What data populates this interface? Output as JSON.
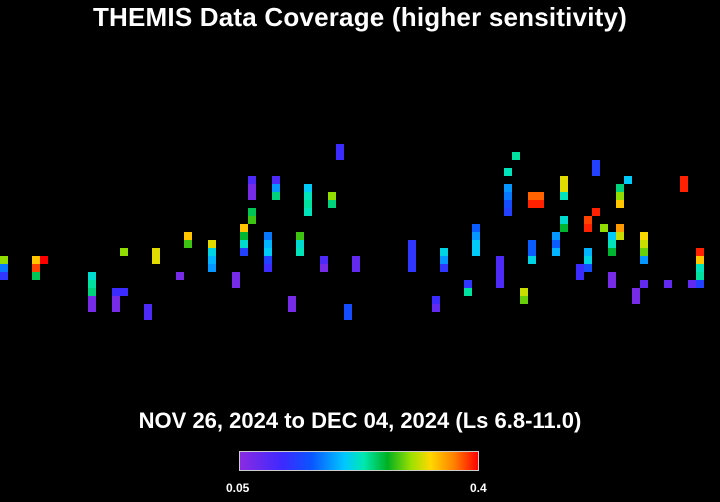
{
  "title": "THEMIS Data Coverage (higher sensitivity)",
  "subtitle": "NOV 26, 2024 to DEC 04, 2024 (Ls 6.8-11.0)",
  "colorbar": {
    "min_label": "0.05",
    "max_label": "0.4",
    "min": 0.05,
    "max": 0.4
  },
  "chart_data": {
    "type": "heatmap",
    "title": "THEMIS Data Coverage (higher sensitivity)",
    "subtitle": "NOV 26, 2024 to DEC 04, 2024 (Ls 6.8-11.0)",
    "value_range": [
      0.05,
      0.4
    ],
    "colorscale": [
      "#8a2be2",
      "#3c2aff",
      "#0a55ff",
      "#00c8ff",
      "#00e8b0",
      "#00b020",
      "#9ee000",
      "#ffd800",
      "#ff8000",
      "#ff0000"
    ],
    "strips": [
      {
        "col": 0,
        "start_row": 32,
        "values": [
          0.28,
          0.14,
          0.1
        ]
      },
      {
        "col": 4,
        "start_row": 32,
        "values": [
          0.33,
          0.38,
          0.23
        ]
      },
      {
        "col": 5,
        "start_row": 32,
        "values": [
          0.4
        ]
      },
      {
        "col": 11,
        "start_row": 34,
        "values": [
          0.19,
          0.21,
          0.22,
          0.06,
          0.06
        ]
      },
      {
        "col": 14,
        "start_row": 36,
        "values": [
          0.09,
          0.06,
          0.06
        ]
      },
      {
        "col": 15,
        "start_row": 36,
        "values": [
          0.09
        ]
      },
      {
        "col": 15,
        "start_row": 31,
        "values": [
          0.28
        ]
      },
      {
        "col": 18,
        "start_row": 38,
        "values": [
          0.08,
          0.08
        ]
      },
      {
        "col": 19,
        "start_row": 31,
        "values": [
          0.31,
          0.31
        ]
      },
      {
        "col": 22,
        "start_row": 34,
        "values": [
          0.06
        ]
      },
      {
        "col": 23,
        "start_row": 29,
        "values": [
          0.33,
          0.26
        ]
      },
      {
        "col": 26,
        "start_row": 30,
        "values": [
          0.31,
          0.18,
          0.16,
          0.15
        ]
      },
      {
        "col": 29,
        "start_row": 34,
        "values": [
          0.06,
          0.06
        ]
      },
      {
        "col": 30,
        "start_row": 28,
        "values": [
          0.33,
          0.24,
          0.19,
          0.11
        ]
      },
      {
        "col": 31,
        "start_row": 22,
        "values": [
          0.08,
          0.06,
          0.06
        ]
      },
      {
        "col": 31,
        "start_row": 26,
        "values": [
          0.23,
          0.26
        ]
      },
      {
        "col": 33,
        "start_row": 29,
        "values": [
          0.14,
          0.16,
          0.17,
          0.11,
          0.09
        ]
      },
      {
        "col": 34,
        "start_row": 22,
        "values": [
          0.08,
          0.15,
          0.22
        ]
      },
      {
        "col": 36,
        "start_row": 37,
        "values": [
          0.06,
          0.06
        ]
      },
      {
        "col": 37,
        "start_row": 29,
        "values": [
          0.26,
          0.19,
          0.2
        ]
      },
      {
        "col": 38,
        "start_row": 23,
        "values": [
          0.17,
          0.2,
          0.21,
          0.2
        ]
      },
      {
        "col": 40,
        "start_row": 32,
        "values": [
          0.08,
          0.06
        ]
      },
      {
        "col": 41,
        "start_row": 24,
        "values": [
          0.28,
          0.22
        ]
      },
      {
        "col": 42,
        "start_row": 18,
        "values": [
          0.09,
          0.09
        ]
      },
      {
        "col": 43,
        "start_row": 38,
        "values": [
          0.12,
          0.12
        ]
      },
      {
        "col": 44,
        "start_row": 32,
        "values": [
          0.07,
          0.07
        ]
      },
      {
        "col": 51,
        "start_row": 30,
        "values": [
          0.1,
          0.1,
          0.1,
          0.1
        ]
      },
      {
        "col": 54,
        "start_row": 37,
        "values": [
          0.09,
          0.07
        ]
      },
      {
        "col": 55,
        "start_row": 31,
        "values": [
          0.09,
          0.09,
          0.1
        ]
      },
      {
        "col": 55,
        "start_row": 33,
        "values": [
          0.09
        ]
      },
      {
        "col": 55,
        "start_row": 31,
        "values": [
          0.18,
          0.15,
          0.1
        ]
      },
      {
        "col": 58,
        "start_row": 35,
        "values": [
          0.1,
          0.21
        ]
      },
      {
        "col": 59,
        "start_row": 28,
        "values": [
          0.13,
          0.15,
          0.17,
          0.17
        ]
      },
      {
        "col": 62,
        "start_row": 32,
        "values": [
          0.08,
          0.08,
          0.08,
          0.08
        ]
      },
      {
        "col": 63,
        "start_row": 23,
        "values": [
          0.15,
          0.14,
          0.12,
          0.11
        ]
      },
      {
        "col": 63,
        "start_row": 21,
        "values": [
          0.2
        ]
      },
      {
        "col": 64,
        "start_row": 19,
        "values": [
          0.21
        ]
      },
      {
        "col": 65,
        "start_row": 36,
        "values": [
          0.3,
          0.27
        ]
      },
      {
        "col": 66,
        "start_row": 30,
        "values": [
          0.13,
          0.13,
          0.18
        ]
      },
      {
        "col": 66,
        "start_row": 24,
        "values": [
          0.37,
          0.39
        ]
      },
      {
        "col": 67,
        "start_row": 24,
        "values": [
          0.37,
          0.39
        ]
      },
      {
        "col": 69,
        "start_row": 29,
        "values": [
          0.15,
          0.13,
          0.16
        ]
      },
      {
        "col": 70,
        "start_row": 22,
        "values": [
          0.31,
          0.31,
          0.2
        ]
      },
      {
        "col": 70,
        "start_row": 27,
        "values": [
          0.19,
          0.24
        ]
      },
      {
        "col": 72,
        "start_row": 33,
        "values": [
          0.09,
          0.09
        ]
      },
      {
        "col": 73,
        "start_row": 31,
        "values": [
          0.16,
          0.18,
          0.12
        ]
      },
      {
        "col": 73,
        "start_row": 27,
        "values": [
          0.38,
          0.39
        ]
      },
      {
        "col": 74,
        "start_row": 26,
        "values": [
          0.39
        ]
      },
      {
        "col": 74,
        "start_row": 20,
        "values": [
          0.11,
          0.11
        ]
      },
      {
        "col": 75,
        "start_row": 28,
        "values": [
          0.28
        ]
      },
      {
        "col": 76,
        "start_row": 29,
        "values": [
          0.17,
          0.2,
          0.24
        ]
      },
      {
        "col": 76,
        "start_row": 34,
        "values": [
          0.06,
          0.06
        ]
      },
      {
        "col": 77,
        "start_row": 23,
        "values": [
          0.22,
          0.28,
          0.33
        ]
      },
      {
        "col": 77,
        "start_row": 28,
        "values": [
          0.35,
          0.3
        ]
      },
      {
        "col": 78,
        "start_row": 22,
        "values": [
          0.17
        ]
      },
      {
        "col": 79,
        "start_row": 36,
        "values": [
          0.06,
          0.06
        ]
      },
      {
        "col": 80,
        "start_row": 29,
        "values": [
          0.32,
          0.3,
          0.27,
          0.15
        ]
      },
      {
        "col": 80,
        "start_row": 35,
        "values": [
          0.07
        ]
      },
      {
        "col": 83,
        "start_row": 35,
        "values": [
          0.07
        ]
      },
      {
        "col": 85,
        "start_row": 22,
        "values": [
          0.39,
          0.39
        ]
      },
      {
        "col": 86,
        "start_row": 35,
        "values": [
          0.07
        ]
      },
      {
        "col": 87,
        "start_row": 31,
        "values": [
          0.39,
          0.33,
          0.2,
          0.21,
          0.11
        ]
      }
    ]
  }
}
